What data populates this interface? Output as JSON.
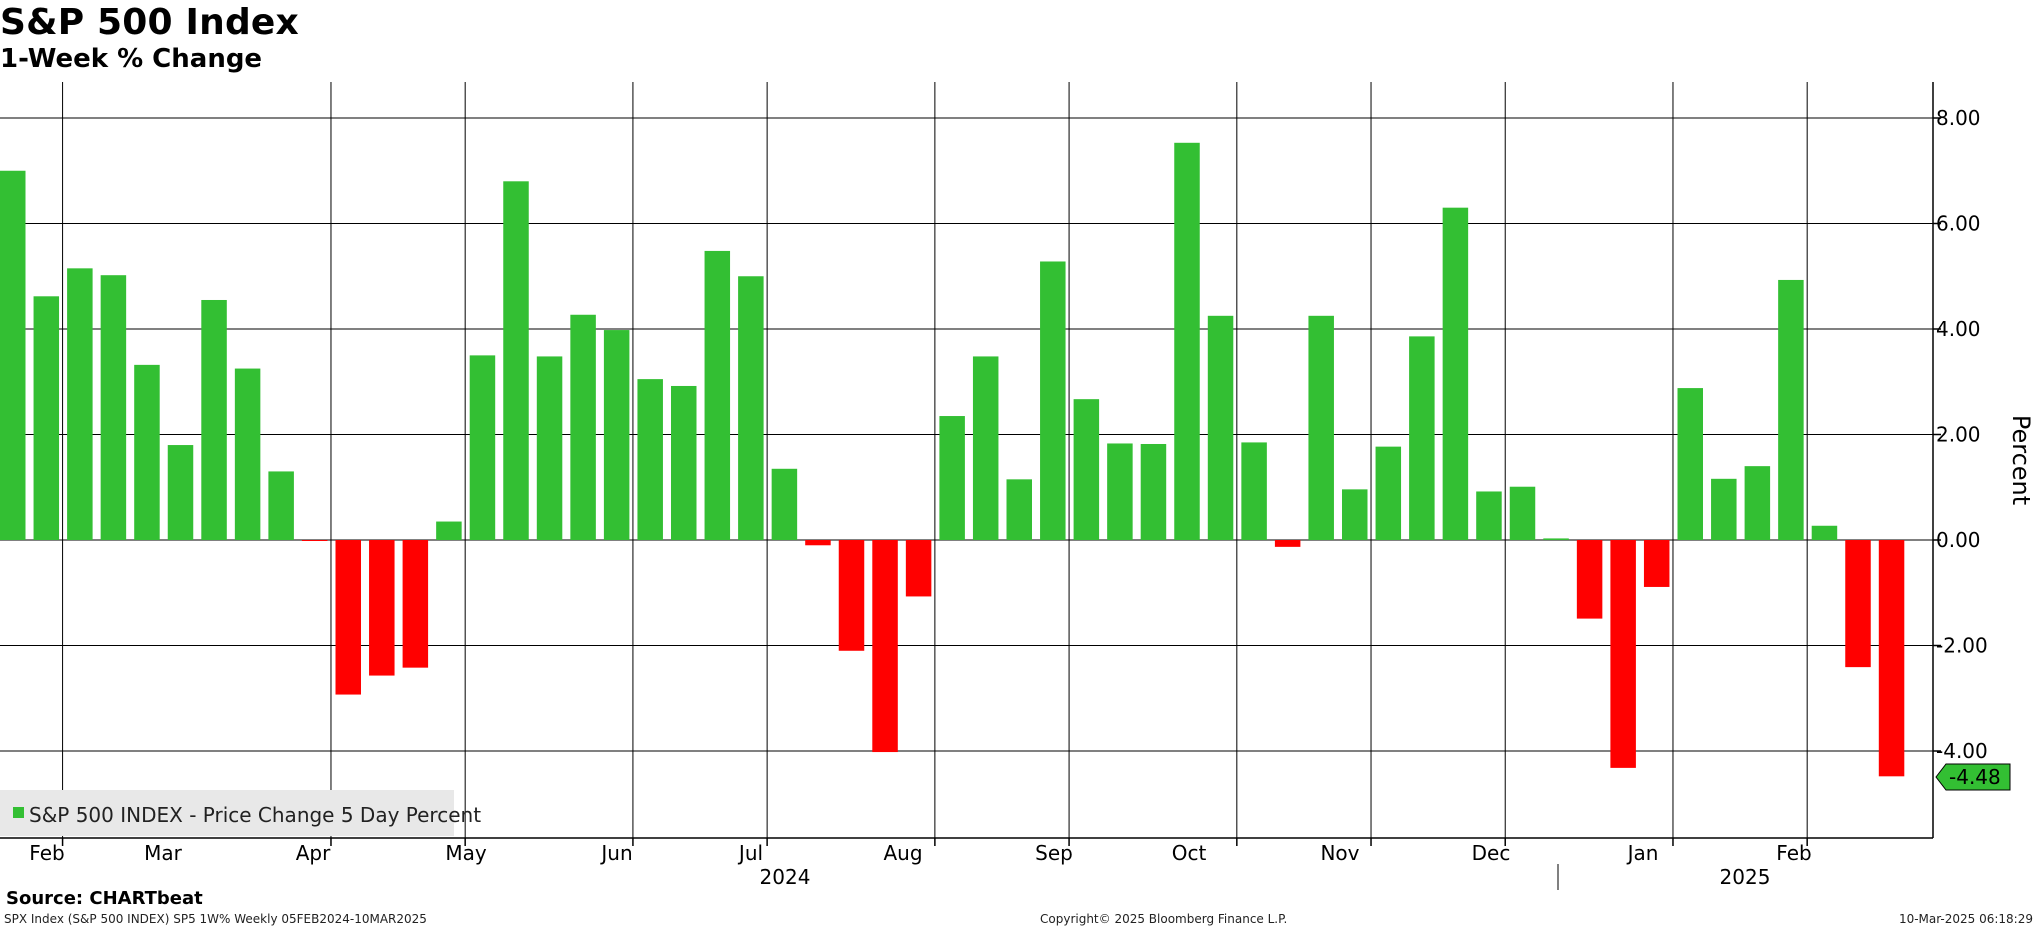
{
  "header": {
    "title": "S&P 500 Index",
    "subtitle": "1-Week % Change"
  },
  "footer": {
    "source": "Source: CHARTbeat",
    "left_note": "SPX Index (S&P 500 INDEX) SP5 1W% Weekly 05FEB2024-10MAR2025",
    "center_note": "Copyright© 2025 Bloomberg Finance L.P.",
    "right_note": "10-Mar-2025 06:18:29"
  },
  "colors": {
    "positive": "#33bf33",
    "negative": "#ff0000",
    "callout_fill": "#33bf33"
  },
  "chart_data": {
    "type": "bar",
    "title": "S&P 500 Index",
    "subtitle": "1-Week % Change",
    "ylabel": "Percent",
    "ylim": [
      -4.48,
      8.7
    ],
    "y_ticks": [
      -4.0,
      -2.0,
      0.0,
      2.0,
      4.0,
      6.0,
      8.0
    ],
    "y_tick_labels": [
      "-4.00",
      "-2.00",
      "0.00",
      "2.00",
      "4.00",
      "6.00",
      "8.00"
    ],
    "y_axis_side": "right",
    "grid": true,
    "legend": {
      "position": "bottom-left",
      "entries": [
        "S&P 500 INDEX - Price Change 5 Day Percent"
      ]
    },
    "last_value_label": "-4.48",
    "x_month_labels": [
      "Feb",
      "Mar",
      "Apr",
      "May",
      "Jun",
      "Jul",
      "Aug",
      "Sep",
      "Oct",
      "Nov",
      "Dec",
      "Jan",
      "Feb"
    ],
    "x_year_labels": [
      "2024",
      "2025"
    ],
    "series": [
      {
        "name": "S&P 500 INDEX - Price Change 5 Day Percent",
        "values": [
          7.0,
          4.62,
          5.15,
          5.02,
          3.32,
          1.8,
          4.55,
          3.25,
          1.3,
          -0.01,
          -2.93,
          -2.57,
          -2.42,
          0.35,
          3.5,
          6.8,
          3.48,
          4.27,
          3.98,
          3.05,
          2.92,
          5.48,
          5.0,
          1.35,
          -0.1,
          -2.1,
          -4.02,
          -1.07,
          2.35,
          3.48,
          1.15,
          5.28,
          2.67,
          1.83,
          1.82,
          7.53,
          4.25,
          1.85,
          -0.13,
          4.25,
          0.96,
          1.77,
          3.86,
          6.3,
          0.92,
          1.01,
          0.03,
          -1.49,
          -4.32,
          -0.89,
          2.88,
          1.16,
          1.4,
          4.93,
          0.27,
          -2.41,
          -4.48
        ]
      }
    ]
  }
}
